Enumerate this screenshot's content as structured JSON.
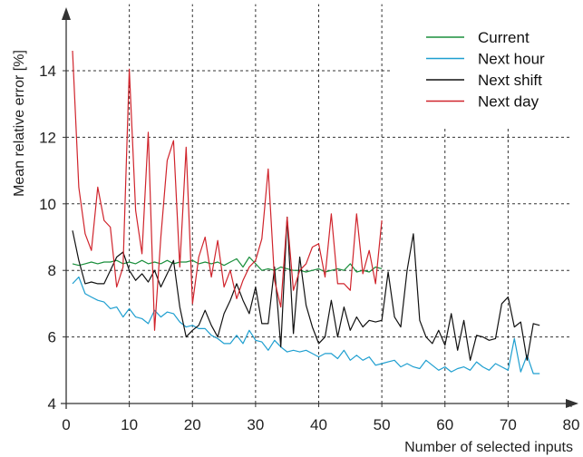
{
  "chart_data": {
    "type": "line",
    "xlabel": "Number of selected inputs",
    "ylabel": "Mean relative error [%]",
    "xlim": [
      0,
      80
    ],
    "ylim": [
      4,
      16
    ],
    "xticks": [
      0,
      10,
      20,
      30,
      40,
      50,
      60,
      70,
      80
    ],
    "yticks": [
      4,
      6,
      8,
      10,
      12,
      14
    ],
    "grid": "dashed, partial",
    "legend_position": "top-right",
    "series": [
      {
        "name": "Current",
        "color": "#1a8f3c",
        "x": [
          1,
          2,
          3,
          4,
          5,
          6,
          7,
          8,
          9,
          10,
          11,
          12,
          13,
          14,
          15,
          16,
          17,
          18,
          19,
          20,
          21,
          22,
          23,
          24,
          25,
          26,
          27,
          28,
          29,
          30,
          31,
          32,
          33,
          34,
          35,
          36,
          37,
          38,
          39,
          40,
          41,
          42,
          43,
          44,
          45,
          46,
          47,
          48,
          49,
          50
        ],
        "y": [
          8.2,
          8.15,
          8.2,
          8.25,
          8.2,
          8.25,
          8.25,
          8.3,
          8.2,
          8.25,
          8.2,
          8.3,
          8.2,
          8.25,
          8.2,
          8.3,
          8.2,
          8.25,
          8.25,
          8.3,
          8.2,
          8.25,
          8.2,
          8.25,
          8.15,
          8.25,
          8.35,
          8.1,
          8.4,
          8.2,
          8.0,
          8.05,
          8.0,
          8.1,
          8.05,
          8.0,
          8.0,
          7.95,
          8.0,
          8.05,
          7.95,
          8.0,
          8.05,
          8.0,
          8.2,
          7.95,
          8.0,
          7.95,
          8.1,
          8.05
        ]
      },
      {
        "name": "Next hour",
        "color": "#1f9fd0",
        "x": [
          1,
          2,
          3,
          4,
          5,
          6,
          7,
          8,
          9,
          10,
          11,
          12,
          13,
          14,
          15,
          16,
          17,
          18,
          19,
          20,
          21,
          22,
          23,
          24,
          25,
          26,
          27,
          28,
          29,
          30,
          31,
          32,
          33,
          34,
          35,
          36,
          37,
          38,
          39,
          40,
          41,
          42,
          43,
          44,
          45,
          46,
          47,
          48,
          49,
          50,
          51,
          52,
          53,
          54,
          55,
          56,
          57,
          58,
          59,
          60,
          61,
          62,
          63,
          64,
          65,
          66,
          67,
          68,
          69,
          70,
          71,
          72,
          73,
          74,
          75
        ],
        "y": [
          7.6,
          7.8,
          7.3,
          7.2,
          7.1,
          7.05,
          6.85,
          6.9,
          6.6,
          6.85,
          6.6,
          6.55,
          6.4,
          6.8,
          6.6,
          6.75,
          6.7,
          6.45,
          6.3,
          6.35,
          6.25,
          6.25,
          6.05,
          5.95,
          5.8,
          5.8,
          6.05,
          5.8,
          6.2,
          5.9,
          5.85,
          5.6,
          5.9,
          5.7,
          5.55,
          5.6,
          5.55,
          5.6,
          5.5,
          5.4,
          5.5,
          5.5,
          5.35,
          5.6,
          5.3,
          5.45,
          5.3,
          5.4,
          5.15,
          5.2,
          5.25,
          5.3,
          5.1,
          5.2,
          5.1,
          5.05,
          5.3,
          5.15,
          5.0,
          5.1,
          4.95,
          5.05,
          5.1,
          5.0,
          5.25,
          5.1,
          5.0,
          5.2,
          5.1,
          5.0,
          5.95,
          4.95,
          5.45,
          4.9,
          4.9
        ]
      },
      {
        "name": "Next shift",
        "color": "#111111",
        "x": [
          1,
          2,
          3,
          4,
          5,
          6,
          7,
          8,
          9,
          10,
          11,
          12,
          13,
          14,
          15,
          16,
          17,
          18,
          19,
          20,
          21,
          22,
          23,
          24,
          25,
          26,
          27,
          28,
          29,
          30,
          31,
          32,
          33,
          34,
          35,
          36,
          37,
          38,
          39,
          40,
          41,
          42,
          43,
          44,
          45,
          46,
          47,
          48,
          49,
          50,
          51,
          52,
          53,
          54,
          55,
          56,
          57,
          58,
          59,
          60,
          61,
          62,
          63,
          64,
          65,
          66,
          67,
          68,
          69,
          70,
          71,
          72,
          73,
          74,
          75
        ],
        "y": [
          9.2,
          8.3,
          7.6,
          7.65,
          7.6,
          7.6,
          8.0,
          8.4,
          8.55,
          8.0,
          7.7,
          7.9,
          7.65,
          8.0,
          7.5,
          7.9,
          8.3,
          6.9,
          6.0,
          6.2,
          6.35,
          6.8,
          6.35,
          6.0,
          6.7,
          7.1,
          7.6,
          7.1,
          6.7,
          7.5,
          6.4,
          6.4,
          8.1,
          5.7,
          9.6,
          6.1,
          8.4,
          6.95,
          6.3,
          5.8,
          6.0,
          7.1,
          6.0,
          6.9,
          6.2,
          6.6,
          6.3,
          6.5,
          6.45,
          6.5,
          7.95,
          6.6,
          6.3,
          8.0,
          9.1,
          6.5,
          6.0,
          5.8,
          6.2,
          5.75,
          6.7,
          5.6,
          6.5,
          5.3,
          6.05,
          6.0,
          5.9,
          5.95,
          7.0,
          7.2,
          6.3,
          6.45,
          5.3,
          6.4,
          6.35
        ]
      },
      {
        "name": "Next day",
        "color": "#d0242c",
        "x": [
          1,
          2,
          3,
          4,
          5,
          6,
          7,
          8,
          9,
          10,
          11,
          12,
          13,
          14,
          15,
          16,
          17,
          18,
          19,
          20,
          21,
          22,
          23,
          24,
          25,
          26,
          27,
          28,
          29,
          30,
          31,
          32,
          33,
          34,
          35,
          36,
          37,
          38,
          39,
          40,
          41,
          42,
          43,
          44,
          45,
          46,
          47,
          48,
          49,
          50
        ],
        "y": [
          14.6,
          10.5,
          9.1,
          8.6,
          10.5,
          9.5,
          9.3,
          7.5,
          8.1,
          14.05,
          9.8,
          8.5,
          12.15,
          6.2,
          9.0,
          11.3,
          11.9,
          8.1,
          11.7,
          7.0,
          8.4,
          9.0,
          7.8,
          8.9,
          7.5,
          8.0,
          7.15,
          7.7,
          8.1,
          8.3,
          8.95,
          11.05,
          7.7,
          6.9,
          9.6,
          7.4,
          8.0,
          8.2,
          8.7,
          8.8,
          7.8,
          9.7,
          7.6,
          7.6,
          7.4,
          9.7,
          7.9,
          8.6,
          7.6,
          9.5
        ]
      }
    ]
  }
}
